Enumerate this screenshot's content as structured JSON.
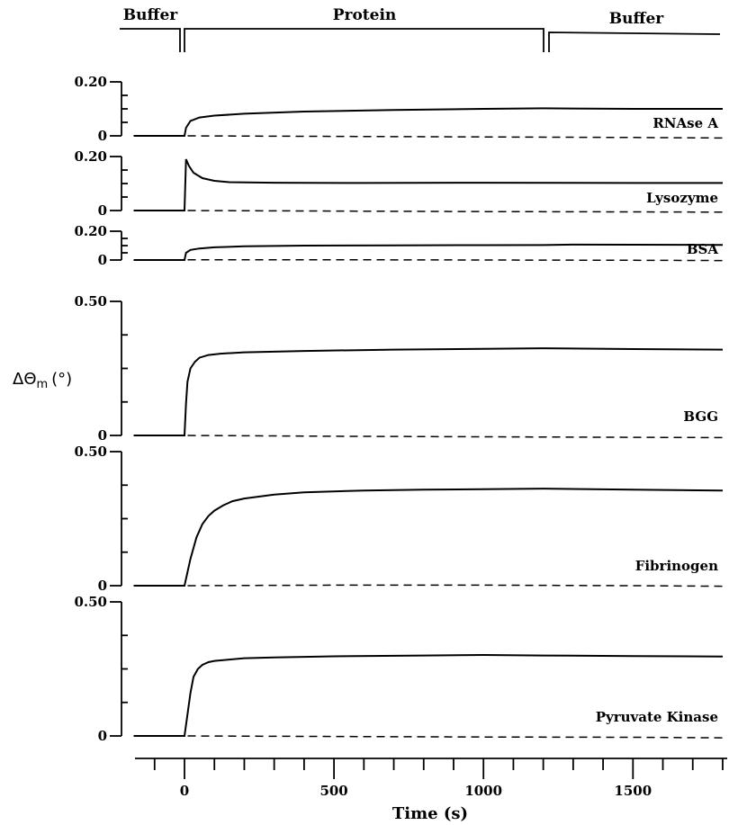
{
  "phases": [
    "Buffer",
    "Protein",
    "Buffer"
  ],
  "x_axis": {
    "label": "Time (s)",
    "ticks": [
      0,
      500,
      1000,
      1500
    ],
    "range": [
      -170,
      1800
    ]
  },
  "y_axis": {
    "label_symbol": "ΔΘ",
    "label_subscript": "m",
    "label_unit": "(°)"
  },
  "chart_data": [
    {
      "type": "line",
      "panel": "RNAse A",
      "ylim": [
        0,
        0.2
      ],
      "yticks": [
        0,
        0.2
      ],
      "ytick_labels": [
        "0",
        "0.20"
      ],
      "series": [
        {
          "style": "solid",
          "x": [
            -170,
            -1,
            0,
            5,
            20,
            50,
            100,
            200,
            400,
            700,
            1000,
            1200,
            1500,
            1800
          ],
          "y": [
            0,
            0,
            0,
            0.03,
            0.055,
            0.068,
            0.075,
            0.082,
            0.09,
            0.096,
            0.1,
            0.102,
            0.1,
            0.1
          ]
        },
        {
          "style": "dashed",
          "x": [
            -170,
            0,
            500,
            1000,
            1500,
            1800
          ],
          "y": [
            0,
            0,
            -0.002,
            -0.004,
            -0.006,
            -0.008
          ]
        }
      ]
    },
    {
      "type": "line",
      "panel": "Lysozyme",
      "ylim": [
        0,
        0.2
      ],
      "yticks": [
        0,
        0.2
      ],
      "ytick_labels": [
        "0",
        "0.20"
      ],
      "series": [
        {
          "style": "solid",
          "x": [
            -170,
            -1,
            0,
            5,
            15,
            30,
            60,
            100,
            150,
            300,
            600,
            1000,
            1500,
            1800
          ],
          "y": [
            0,
            0,
            0,
            0.19,
            0.165,
            0.14,
            0.12,
            0.11,
            0.105,
            0.103,
            0.102,
            0.103,
            0.102,
            0.102
          ]
        },
        {
          "style": "dashed",
          "x": [
            -170,
            0,
            500,
            1000,
            1500,
            1800
          ],
          "y": [
            0,
            0,
            -0.002,
            -0.004,
            -0.005,
            -0.006
          ]
        }
      ]
    },
    {
      "type": "line",
      "panel": "BSA",
      "ylim": [
        0,
        0.2
      ],
      "yticks": [
        0,
        0.2
      ],
      "ytick_labels": [
        "0",
        "0.20"
      ],
      "series": [
        {
          "style": "solid",
          "x": [
            -170,
            -1,
            0,
            5,
            20,
            50,
            100,
            200,
            400,
            700,
            1000,
            1200,
            1300,
            1500,
            1800
          ],
          "y": [
            0,
            0,
            0,
            0.05,
            0.07,
            0.08,
            0.088,
            0.095,
            0.1,
            0.102,
            0.103,
            0.104,
            0.107,
            0.106,
            0.105
          ]
        },
        {
          "style": "dashed",
          "x": [
            -170,
            0,
            500,
            1000,
            1500,
            1800
          ],
          "y": [
            0,
            0.002,
            0.002,
            0,
            -0.002,
            -0.004
          ]
        }
      ]
    },
    {
      "type": "line",
      "panel": "BGG",
      "ylim": [
        0,
        0.5
      ],
      "yticks": [
        0,
        0.5
      ],
      "ytick_labels": [
        "0",
        "0.50"
      ],
      "series": [
        {
          "style": "solid",
          "x": [
            -170,
            -1,
            0,
            5,
            10,
            20,
            35,
            50,
            80,
            120,
            200,
            400,
            700,
            1000,
            1200,
            1500,
            1800
          ],
          "y": [
            0,
            0,
            0,
            0.12,
            0.2,
            0.25,
            0.275,
            0.29,
            0.3,
            0.305,
            0.31,
            0.315,
            0.32,
            0.323,
            0.325,
            0.322,
            0.32
          ]
        },
        {
          "style": "dashed",
          "x": [
            -170,
            0,
            500,
            1000,
            1500,
            1800
          ],
          "y": [
            0,
            0,
            -0.003,
            -0.005,
            -0.007,
            -0.008
          ]
        }
      ]
    },
    {
      "type": "line",
      "panel": "Fibrinogen",
      "ylim": [
        0,
        0.5
      ],
      "yticks": [
        0,
        0.5
      ],
      "ytick_labels": [
        "0",
        "0.50"
      ],
      "series": [
        {
          "style": "solid",
          "x": [
            -170,
            -1,
            0,
            20,
            40,
            60,
            80,
            100,
            130,
            160,
            200,
            300,
            400,
            600,
            800,
            1000,
            1200,
            1500,
            1800
          ],
          "y": [
            0,
            0,
            0,
            0.1,
            0.18,
            0.23,
            0.26,
            0.28,
            0.3,
            0.315,
            0.325,
            0.34,
            0.348,
            0.355,
            0.358,
            0.36,
            0.362,
            0.358,
            0.355
          ]
        },
        {
          "style": "dashed",
          "x": [
            -170,
            0,
            500,
            1000,
            1500,
            1800
          ],
          "y": [
            0,
            0,
            0.002,
            0.002,
            0,
            -0.002
          ]
        }
      ]
    },
    {
      "type": "line",
      "panel": "Pyruvate Kinase",
      "ylim": [
        0,
        0.5
      ],
      "yticks": [
        0,
        0.5
      ],
      "ytick_labels": [
        "0",
        "0.50"
      ],
      "series": [
        {
          "style": "solid",
          "x": [
            -170,
            -1,
            0,
            10,
            20,
            30,
            45,
            60,
            80,
            100,
            150,
            200,
            300,
            500,
            800,
            1000,
            1200,
            1500,
            1800
          ],
          "y": [
            0,
            0,
            0,
            0.08,
            0.16,
            0.22,
            0.25,
            0.265,
            0.275,
            0.28,
            0.285,
            0.29,
            0.293,
            0.297,
            0.3,
            0.302,
            0.3,
            0.298,
            0.296
          ]
        },
        {
          "style": "dashed",
          "x": [
            -170,
            0,
            500,
            1000,
            1500,
            1800
          ],
          "y": [
            0,
            0,
            -0.002,
            -0.004,
            -0.005,
            -0.007
          ]
        }
      ]
    }
  ]
}
